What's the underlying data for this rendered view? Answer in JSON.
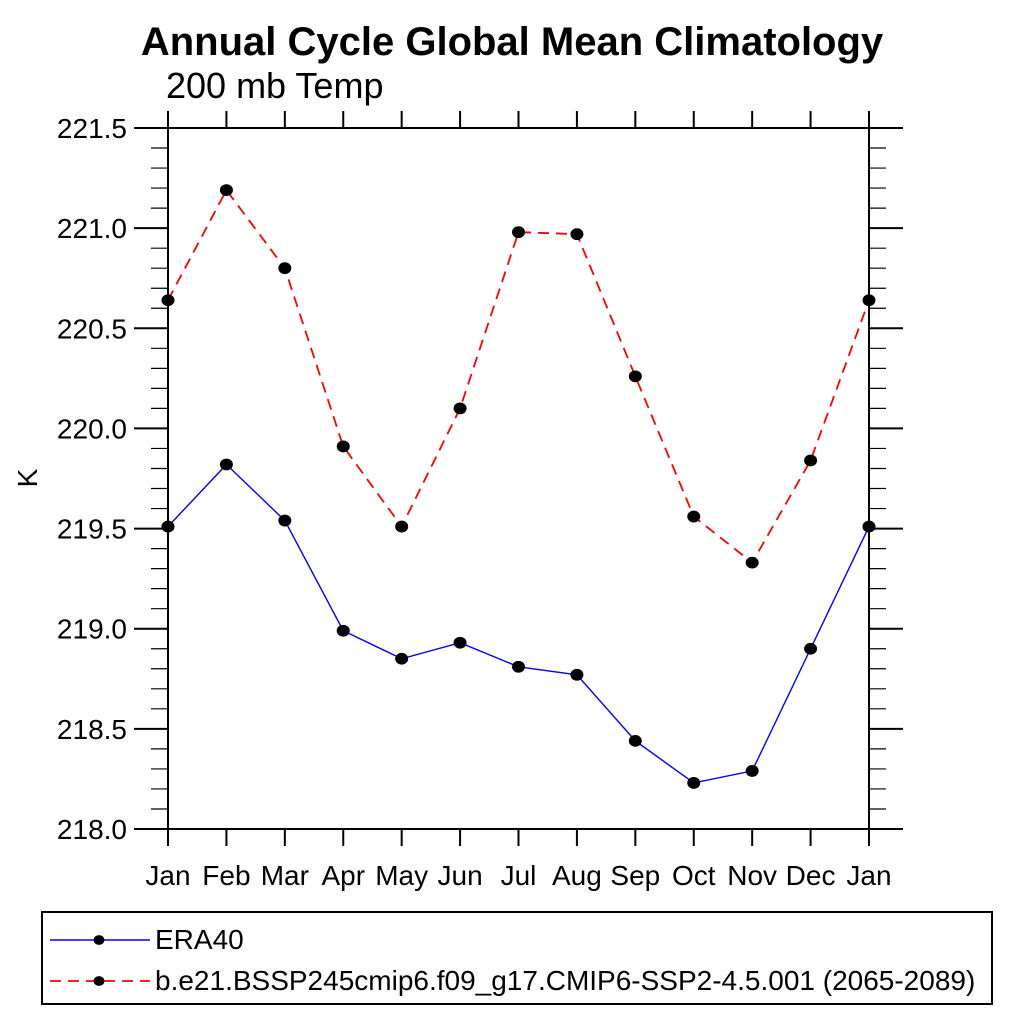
{
  "chart_data": {
    "type": "line",
    "title": "Annual Cycle Global Mean Climatology",
    "subtitle": "200 mb Temp",
    "xlabel": "",
    "ylabel": "K",
    "categories": [
      "Jan",
      "Feb",
      "Mar",
      "Apr",
      "May",
      "Jun",
      "Jul",
      "Aug",
      "Sep",
      "Oct",
      "Nov",
      "Dec",
      "Jan"
    ],
    "ylim": [
      218.0,
      221.5
    ],
    "y_tick_labels": [
      "218.0",
      "218.5",
      "219.0",
      "219.5",
      "220.0",
      "220.5",
      "221.0",
      "221.5"
    ],
    "y_minor_step": 0.1,
    "grid": false,
    "legend_position": "bottom",
    "frame_color": "#000000",
    "marker_color": "#000000",
    "series": [
      {
        "name": "ERA40",
        "color": "#0000fe",
        "line_style": "solid",
        "marker": "filled-circle",
        "values": [
          219.51,
          219.82,
          219.54,
          218.99,
          218.85,
          218.93,
          218.81,
          218.77,
          218.44,
          218.23,
          218.29,
          218.9,
          219.51
        ]
      },
      {
        "name": "b.e21.BSSP245cmip6.f09_g17.CMIP6-SSP2-4.5.001 (2065-2089)",
        "color": "#fe0000",
        "line_style": "dashed",
        "marker": "filled-circle",
        "values": [
          220.64,
          221.19,
          220.8,
          219.91,
          219.51,
          220.1,
          220.98,
          220.97,
          220.26,
          219.56,
          219.33,
          219.84,
          220.64
        ]
      }
    ]
  }
}
